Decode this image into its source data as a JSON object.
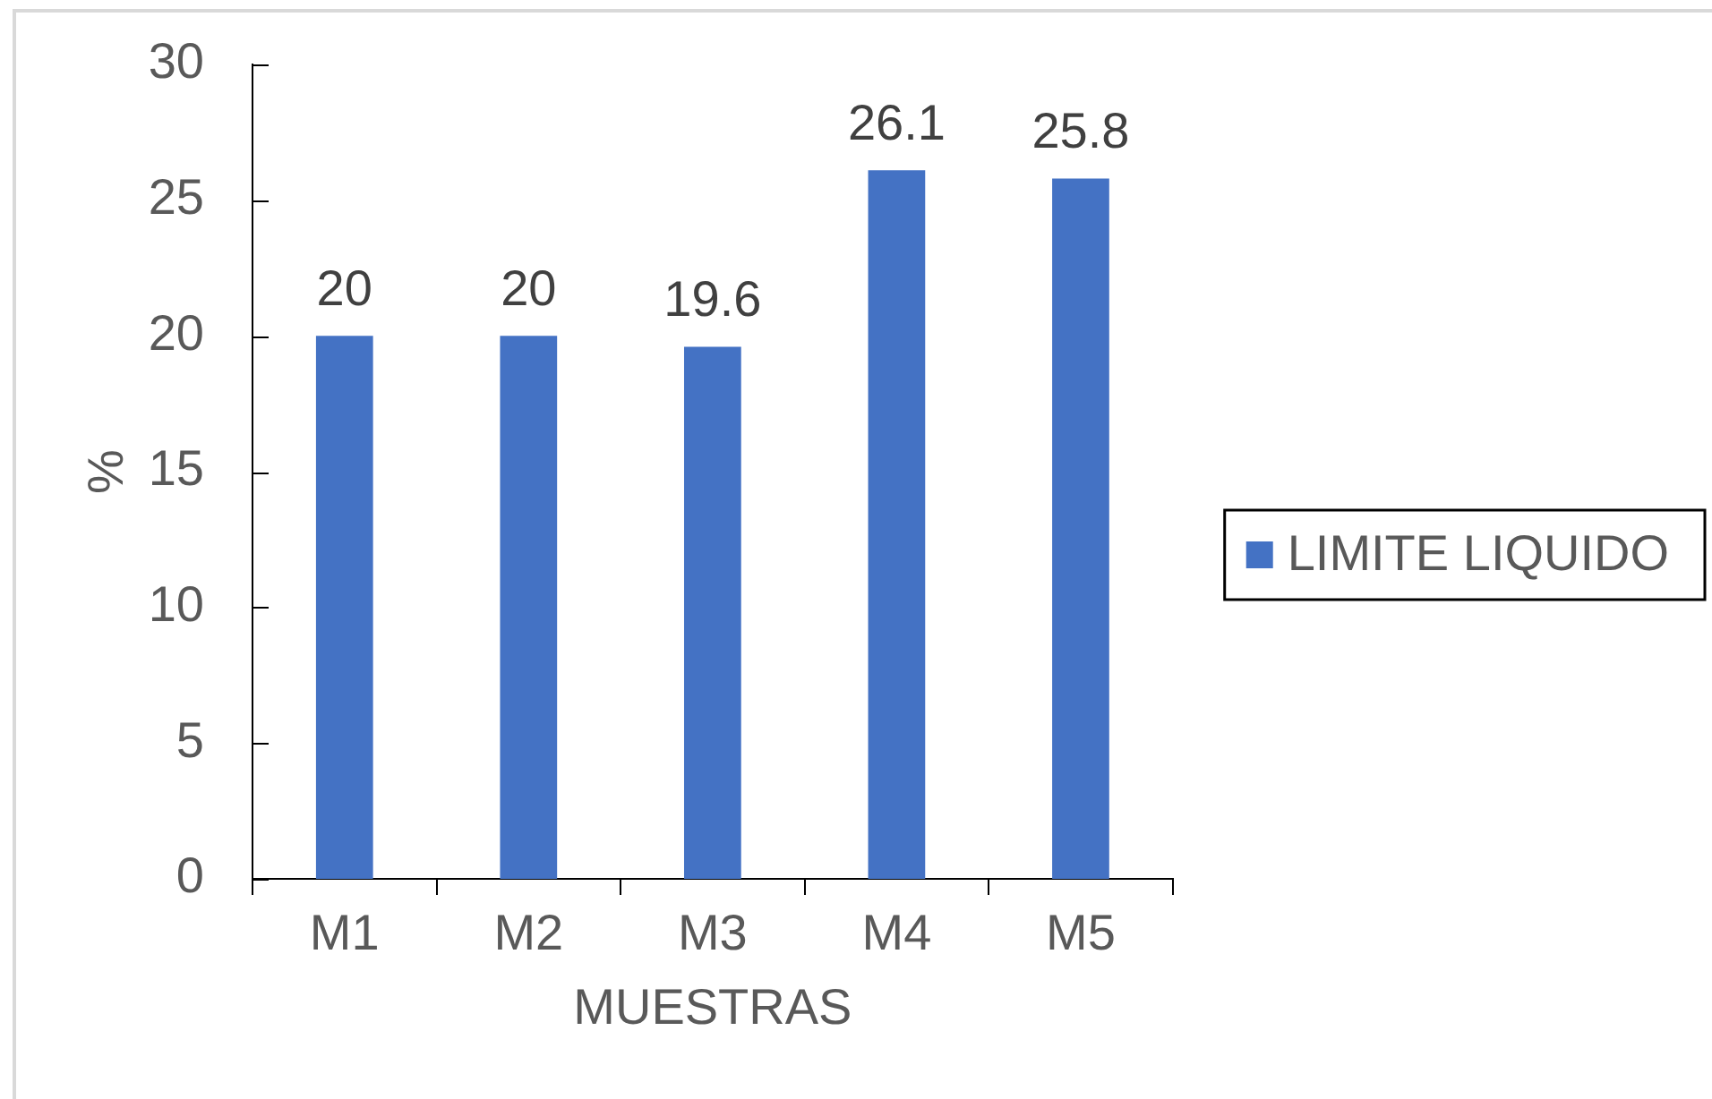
{
  "chart_data": {
    "type": "bar",
    "categories": [
      "M1",
      "M2",
      "M3",
      "M4",
      "M5"
    ],
    "series": [
      {
        "name": "LIMITE LIQUIDO",
        "color": "#4472c4",
        "values": [
          20,
          20,
          19.6,
          26.1,
          25.8
        ]
      }
    ],
    "xlabel": "MUESTRAS",
    "ylabel": "%",
    "ylim": [
      0,
      30
    ],
    "yticks": [
      0,
      5,
      10,
      15,
      20,
      25,
      30
    ],
    "data_labels": true,
    "legend": "right"
  }
}
